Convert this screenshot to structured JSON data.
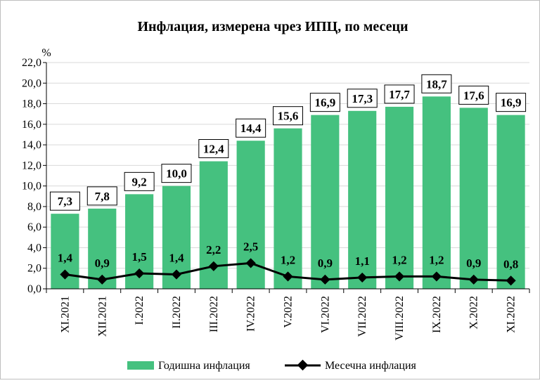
{
  "chart_data": {
    "type": "bar",
    "title": "Инфлация, измерена чрез ИПЦ, по месеци",
    "ylabel": "%",
    "ylim": [
      0,
      22
    ],
    "ytick_step": 2,
    "ytick_labels": [
      "0,0",
      "2,0",
      "4,0",
      "6,0",
      "8,0",
      "10,0",
      "12,0",
      "14,0",
      "16,0",
      "18,0",
      "20,0",
      "22,0"
    ],
    "grid": true,
    "legend_position": "bottom",
    "categories": [
      "XI.2021",
      "XII.2021",
      "I.2022",
      "II.2022",
      "III.2022",
      "IV.2022",
      "V.2022",
      "VI.2022",
      "VII.2022",
      "VIII.2022",
      "IX.2022",
      "X.2022",
      "XI.2022"
    ],
    "series": [
      {
        "name": "Годишна инфлация",
        "type": "bar",
        "color": "#45c17f",
        "values": [
          7.3,
          7.8,
          9.2,
          10.0,
          12.4,
          14.4,
          15.6,
          16.9,
          17.3,
          17.7,
          18.7,
          17.6,
          16.9
        ],
        "labels": [
          "7,3",
          "7,8",
          "9,2",
          "10,0",
          "12,4",
          "14,4",
          "15,6",
          "16,9",
          "17,3",
          "17,7",
          "18,7",
          "17,6",
          "16,9"
        ]
      },
      {
        "name": "Месечна инфлация",
        "type": "line",
        "color": "#000000",
        "values": [
          1.4,
          0.9,
          1.5,
          1.4,
          2.2,
          2.5,
          1.2,
          0.9,
          1.1,
          1.2,
          1.2,
          0.9,
          0.8
        ],
        "labels": [
          "1,4",
          "0,9",
          "1,5",
          "1,4",
          "2,2",
          "2,5",
          "1,2",
          "0,9",
          "1,1",
          "1,2",
          "1,2",
          "0,9",
          "0,8"
        ]
      }
    ]
  }
}
